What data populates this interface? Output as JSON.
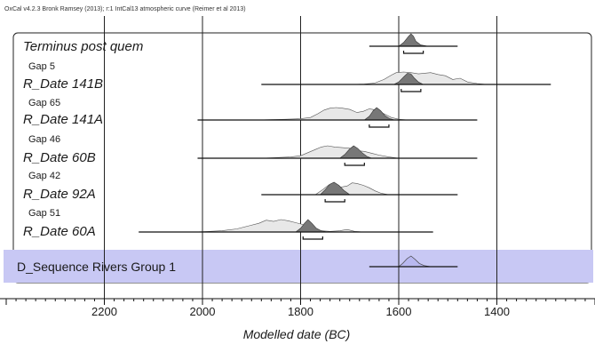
{
  "header": "OxCal v4.2.3 Bronk Ramsey (2013); r:1 IntCal13 atmospheric curve (Reimer et al 2013)",
  "chart_data": {
    "type": "density-ridge",
    "xlabel": "Modelled date (BC)",
    "xlim": [
      2400,
      1200
    ],
    "ticks": [
      2200,
      2000,
      1800,
      1600,
      1400
    ],
    "grid": true,
    "gaps": [
      {
        "label": "Gap 5"
      },
      {
        "label": "Gap 65"
      },
      {
        "label": "Gap 46"
      },
      {
        "label": "Gap 42"
      },
      {
        "label": "Gap 51"
      }
    ],
    "series": [
      {
        "name": "Terminus post quem",
        "range": [
          1660,
          1480
        ],
        "posterior": [
          [
            1600,
            0
          ],
          [
            1590,
            0.3
          ],
          [
            1580,
            0.8
          ],
          [
            1575,
            1.0
          ],
          [
            1570,
            0.8
          ],
          [
            1565,
            0.4
          ],
          [
            1555,
            0.1
          ],
          [
            1540,
            0
          ]
        ],
        "hpd": [
          1590,
          1550
        ]
      },
      {
        "name": "R_Date 141B",
        "range": [
          1880,
          1290
        ],
        "prior": [
          [
            1700,
            0
          ],
          [
            1670,
            0.03
          ],
          [
            1650,
            0.1
          ],
          [
            1630,
            0.4
          ],
          [
            1615,
            0.75
          ],
          [
            1605,
            0.95
          ],
          [
            1590,
            1.0
          ],
          [
            1575,
            0.95
          ],
          [
            1560,
            0.85
          ],
          [
            1548,
            0.9
          ],
          [
            1535,
            0.95
          ],
          [
            1520,
            0.8
          ],
          [
            1505,
            0.7
          ],
          [
            1490,
            0.4
          ],
          [
            1475,
            0.5
          ],
          [
            1460,
            0.2
          ],
          [
            1440,
            0.07
          ],
          [
            1420,
            0
          ]
        ],
        "posterior": [
          [
            1610,
            0
          ],
          [
            1600,
            0.2
          ],
          [
            1590,
            0.6
          ],
          [
            1582,
            0.9
          ],
          [
            1575,
            0.85
          ],
          [
            1568,
            0.5
          ],
          [
            1560,
            0.2
          ],
          [
            1550,
            0
          ]
        ],
        "hpd": [
          1595,
          1555
        ]
      },
      {
        "name": "R_Date 141A",
        "range": [
          2010,
          1440
        ],
        "prior": [
          [
            1890,
            0
          ],
          [
            1860,
            0.03
          ],
          [
            1830,
            0.06
          ],
          [
            1800,
            0.1
          ],
          [
            1780,
            0.2
          ],
          [
            1765,
            0.5
          ],
          [
            1752,
            0.8
          ],
          [
            1740,
            0.95
          ],
          [
            1728,
            1.0
          ],
          [
            1715,
            0.95
          ],
          [
            1700,
            0.85
          ],
          [
            1685,
            0.6
          ],
          [
            1672,
            0.7
          ],
          [
            1660,
            0.9
          ],
          [
            1645,
            0.8
          ],
          [
            1630,
            0.5
          ],
          [
            1615,
            0.2
          ],
          [
            1600,
            0.06
          ],
          [
            1580,
            0
          ]
        ],
        "posterior": [
          [
            1670,
            0
          ],
          [
            1660,
            0.3
          ],
          [
            1652,
            0.75
          ],
          [
            1645,
            1.0
          ],
          [
            1637,
            0.75
          ],
          [
            1628,
            0.35
          ],
          [
            1618,
            0.1
          ],
          [
            1608,
            0
          ]
        ],
        "hpd": [
          1660,
          1620
        ]
      },
      {
        "name": "R_Date 60B",
        "range": [
          2010,
          1440
        ],
        "prior": [
          [
            1880,
            0
          ],
          [
            1850,
            0.05
          ],
          [
            1820,
            0.1
          ],
          [
            1800,
            0.2
          ],
          [
            1785,
            0.45
          ],
          [
            1770,
            0.7
          ],
          [
            1758,
            0.9
          ],
          [
            1745,
            1.0
          ],
          [
            1730,
            0.9
          ],
          [
            1715,
            0.85
          ],
          [
            1700,
            0.8
          ],
          [
            1685,
            0.6
          ],
          [
            1670,
            0.55
          ],
          [
            1655,
            0.4
          ],
          [
            1640,
            0.25
          ],
          [
            1620,
            0.1
          ],
          [
            1600,
            0
          ]
        ],
        "posterior": [
          [
            1720,
            0
          ],
          [
            1710,
            0.3
          ],
          [
            1700,
            0.75
          ],
          [
            1692,
            1.0
          ],
          [
            1684,
            0.8
          ],
          [
            1675,
            0.45
          ],
          [
            1665,
            0.15
          ],
          [
            1655,
            0
          ]
        ],
        "hpd": [
          1710,
          1670
        ]
      },
      {
        "name": "R_Date 92A",
        "range": [
          1880,
          1480
        ],
        "prior": [
          [
            1770,
            0
          ],
          [
            1755,
            0.4
          ],
          [
            1742,
            0.8
          ],
          [
            1730,
            0.9
          ],
          [
            1718,
            0.6
          ],
          [
            1705,
            0.7
          ],
          [
            1695,
            0.95
          ],
          [
            1685,
            0.9
          ],
          [
            1672,
            0.75
          ],
          [
            1660,
            0.55
          ],
          [
            1648,
            0.3
          ],
          [
            1635,
            0.1
          ],
          [
            1620,
            0
          ]
        ],
        "posterior": [
          [
            1760,
            0
          ],
          [
            1750,
            0.4
          ],
          [
            1740,
            0.85
          ],
          [
            1732,
            1.0
          ],
          [
            1722,
            0.75
          ],
          [
            1712,
            0.35
          ],
          [
            1700,
            0
          ]
        ],
        "hpd": [
          1750,
          1710
        ]
      },
      {
        "name": "R_Date 60A",
        "range": [
          2130,
          1530
        ],
        "prior": [
          [
            2020,
            0
          ],
          [
            1990,
            0.04
          ],
          [
            1960,
            0.1
          ],
          [
            1930,
            0.25
          ],
          [
            1905,
            0.5
          ],
          [
            1885,
            0.7
          ],
          [
            1870,
            0.95
          ],
          [
            1855,
            0.85
          ],
          [
            1840,
            1.0
          ],
          [
            1825,
            0.9
          ],
          [
            1810,
            0.75
          ],
          [
            1795,
            0.6
          ],
          [
            1780,
            0.3
          ],
          [
            1760,
            0.1
          ],
          [
            1740,
            0.05
          ],
          [
            1720,
            0.1
          ],
          [
            1705,
            0.2
          ],
          [
            1690,
            0.05
          ],
          [
            1670,
            0
          ]
        ],
        "posterior": [
          [
            1810,
            0
          ],
          [
            1800,
            0.3
          ],
          [
            1792,
            0.7
          ],
          [
            1785,
            1.0
          ],
          [
            1777,
            0.7
          ],
          [
            1768,
            0.3
          ],
          [
            1758,
            0.1
          ],
          [
            1745,
            0
          ]
        ],
        "hpd": [
          1795,
          1755
        ]
      }
    ],
    "summary": {
      "name": "D_Sequence Rivers Group 1",
      "range": [
        1660,
        1480
      ],
      "posterior": [
        [
          1600,
          0
        ],
        [
          1592,
          0.3
        ],
        [
          1583,
          0.75
        ],
        [
          1575,
          1.0
        ],
        [
          1567,
          0.7
        ],
        [
          1558,
          0.3
        ],
        [
          1548,
          0.1
        ],
        [
          1535,
          0
        ]
      ]
    }
  }
}
